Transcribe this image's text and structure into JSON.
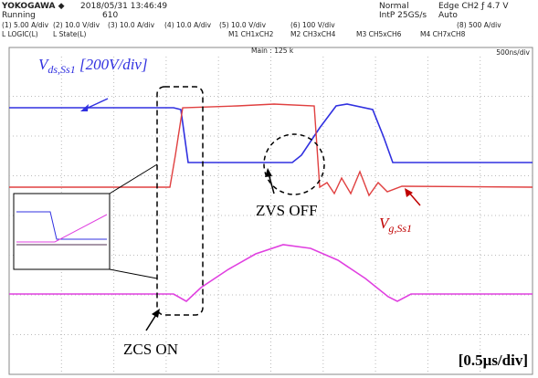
{
  "header": {
    "brand": "YOKOGAWA ◆",
    "datetime": "2018/05/31 13:46:49",
    "status": "Running",
    "count": "610",
    "mode": "Normal",
    "sample": "IntP 25GS/s",
    "trigger": "Edge CH2 ƒ 4.7 V",
    "trigger_mode": "Auto"
  },
  "channels": [
    "(1) 5.00 A/div",
    "(2) 10.0 V/div",
    "(3) 10.0 A/div",
    "(4) 10.0 A/div",
    "(5) 10.0 V/div",
    "(6) 100 V/div",
    "(8) 500 A/div"
  ],
  "math": [
    "L LOGIC(L)",
    "L State(L)",
    "M1 CH1xCH2",
    "M2 CH3xCH4",
    "M3 CH5xCH6",
    "M4 CH7xCH8"
  ],
  "main_label": "Main : 125 k",
  "timebase": "500ns/div",
  "annotations": {
    "vds": {
      "main": "V",
      "sub": "ds,Ss1",
      "suffix": " [200V/div]"
    },
    "vg": {
      "main": "V",
      "sub": "g,Ss1"
    },
    "zvs": "ZVS OFF",
    "zcs": "ZCS ON",
    "scale": "[0.5μs/div]"
  }
}
